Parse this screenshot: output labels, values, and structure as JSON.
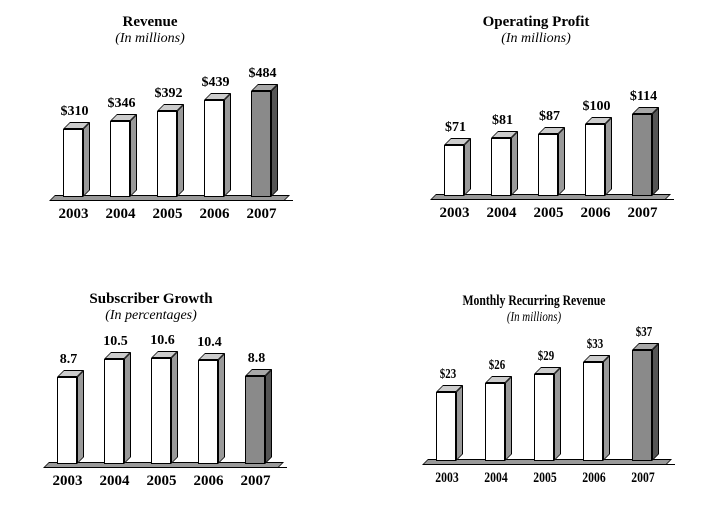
{
  "figure": {
    "background": "#ffffff",
    "years_shown": [
      "2003",
      "2004",
      "2005",
      "2006",
      "2007"
    ]
  },
  "colors": {
    "bar_front": "#ffffff",
    "bar_top": "#cccccc",
    "bar_side": "#999999",
    "highlight_front": "#8a8a8a",
    "highlight_top": "#a8a8a8",
    "highlight_side": "#555555",
    "floor": "#999999",
    "outline": "#000000",
    "text": "#000000"
  },
  "chart_data": [
    {
      "type": "bar",
      "title": "Revenue",
      "subtitle": "(In millions)",
      "categories": [
        "2003",
        "2004",
        "2005",
        "2006",
        "2007"
      ],
      "values": [
        310,
        346,
        392,
        439,
        484
      ],
      "value_labels": [
        "$310",
        "$346",
        "$392",
        "$439",
        "$484"
      ],
      "ylim": [
        0,
        500
      ],
      "highlight_index": 4,
      "grid": false,
      "legend": false,
      "condensed": false
    },
    {
      "type": "bar",
      "title": "Operating Profit",
      "subtitle": "(In millions)",
      "categories": [
        "2003",
        "2004",
        "2005",
        "2006",
        "2007"
      ],
      "values": [
        71,
        81,
        87,
        100,
        114
      ],
      "value_labels": [
        "$71",
        "$81",
        "$87",
        "$100",
        "$114"
      ],
      "ylim": [
        0,
        120
      ],
      "highlight_index": 4,
      "grid": false,
      "legend": false,
      "condensed": false
    },
    {
      "type": "bar",
      "title": "Subscriber Growth",
      "subtitle": "(In percentages)",
      "categories": [
        "2003",
        "2004",
        "2005",
        "2006",
        "2007"
      ],
      "values": [
        8.7,
        10.5,
        10.6,
        10.4,
        8.8
      ],
      "value_labels": [
        "8.7",
        "10.5",
        "10.6",
        "10.4",
        "8.8"
      ],
      "ylim": [
        0,
        11
      ],
      "highlight_index": 4,
      "grid": false,
      "legend": false,
      "condensed": false
    },
    {
      "type": "bar",
      "title": "Monthly Recurring Revenue",
      "subtitle": "(In millions)",
      "categories": [
        "2003",
        "2004",
        "2005",
        "2006",
        "2007"
      ],
      "values": [
        23,
        26,
        29,
        33,
        37
      ],
      "value_labels": [
        "$23",
        "$26",
        "$29",
        "$33",
        "$37"
      ],
      "ylim": [
        0,
        38
      ],
      "highlight_index": 4,
      "grid": false,
      "legend": false,
      "condensed": true
    }
  ]
}
